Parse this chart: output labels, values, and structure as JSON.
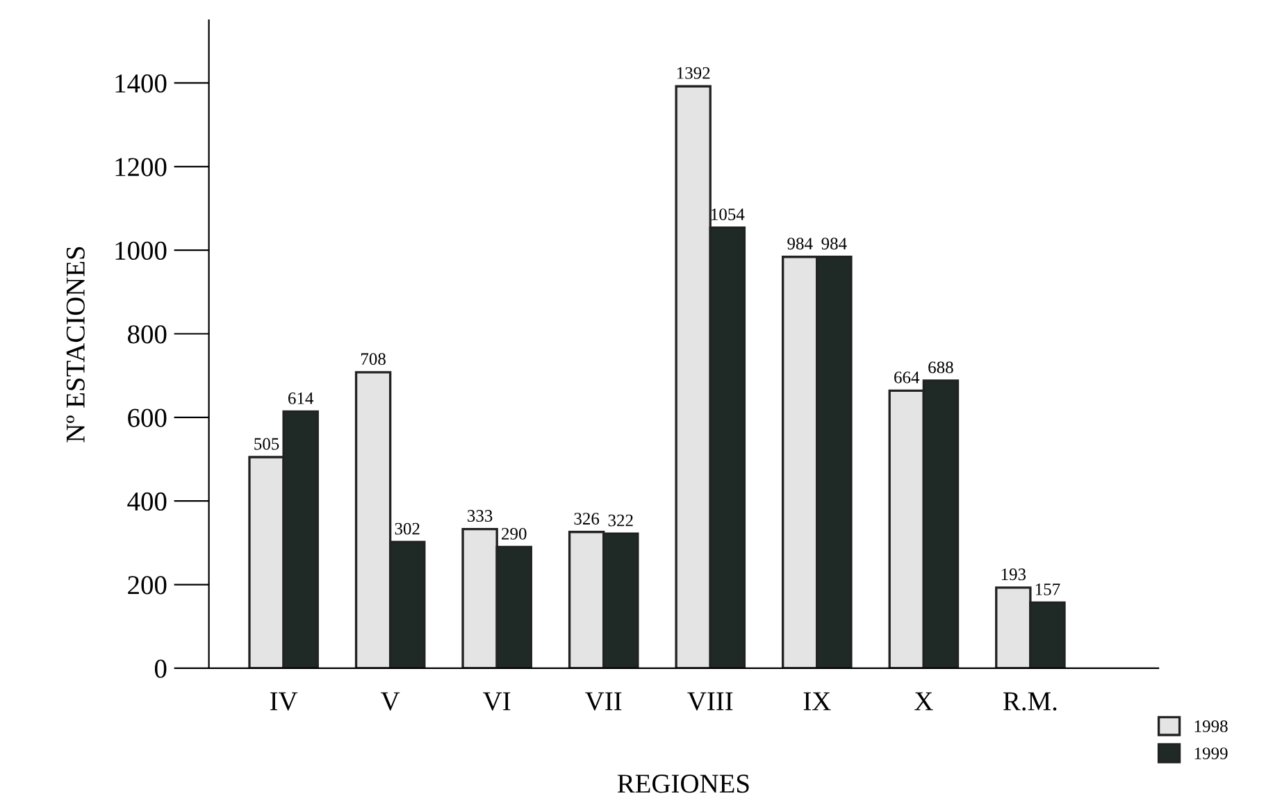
{
  "chart_data": {
    "type": "bar",
    "xlabel": "REGIONES",
    "ylabel": "Nº ESTACIONES",
    "categories": [
      "IV",
      "V",
      "VI",
      "VII",
      "VIII",
      "IX",
      "X",
      "R.M."
    ],
    "series": [
      {
        "name": "1998",
        "color": "#e4e4e4",
        "values": [
          505,
          708,
          333,
          326,
          1392,
          984,
          664,
          193
        ]
      },
      {
        "name": "1999",
        "color": "#1f2a26",
        "values": [
          614,
          302,
          290,
          322,
          1054,
          984,
          688,
          157
        ]
      }
    ],
    "data_labels": true,
    "ylim": [
      0,
      1550
    ],
    "yticks": [
      0,
      200,
      400,
      600,
      800,
      1000,
      1200,
      1400
    ],
    "grid": false,
    "legend": "bottom right"
  }
}
